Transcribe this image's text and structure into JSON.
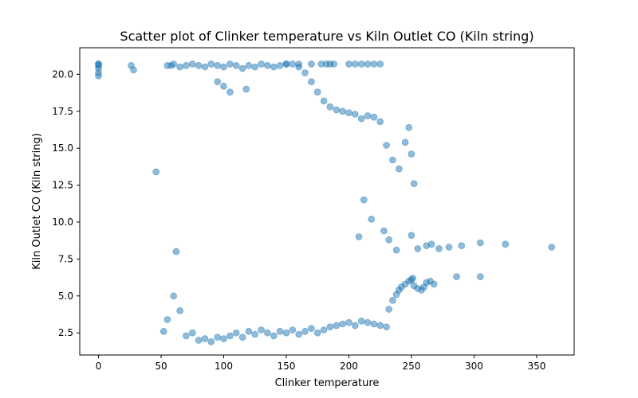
{
  "chart_data": {
    "type": "scatter",
    "title": "Scatter plot of Clinker temperature vs Kiln Outlet CO (Kiln string)",
    "xlabel": "Clinker temperature",
    "ylabel": "Kiln Outlet CO (Kiln string)",
    "xlim": [
      -15,
      380
    ],
    "ylim": [
      1.0,
      21.8
    ],
    "xticks": [
      0,
      50,
      100,
      150,
      200,
      250,
      300,
      350
    ],
    "yticks": [
      2.5,
      5.0,
      7.5,
      10.0,
      12.5,
      15.0,
      17.5,
      20.0
    ],
    "ytick_labels": [
      "2.5",
      "5.0",
      "7.5",
      "10.0",
      "12.5",
      "15.0",
      "17.5",
      "20.0"
    ],
    "grid": false,
    "marker_color": "#1f77b4",
    "marker_alpha": 0.5,
    "series": [
      {
        "x": [
          0,
          0,
          0,
          0,
          0,
          0,
          26,
          28,
          46,
          58,
          52,
          55,
          60,
          65,
          62,
          70,
          75,
          80,
          85,
          90,
          95,
          100,
          105,
          110,
          115,
          120,
          125,
          130,
          135,
          140,
          145,
          150,
          155,
          160,
          165,
          170,
          175,
          180,
          185,
          190,
          195,
          200,
          205,
          210,
          215,
          220,
          225,
          230,
          232,
          235,
          238,
          240,
          242,
          245,
          248,
          250,
          251,
          252,
          255,
          258,
          260,
          262,
          265,
          268,
          255,
          250,
          262,
          266,
          272,
          280,
          286,
          290,
          305,
          305,
          325,
          362,
          248,
          245,
          250,
          252,
          240,
          235,
          230,
          225,
          220,
          215,
          210,
          205,
          200,
          195,
          190,
          185,
          180,
          175,
          170,
          165,
          160,
          155,
          150,
          145,
          140,
          135,
          130,
          125,
          120,
          115,
          110,
          105,
          100,
          95,
          90,
          85,
          80,
          75,
          70,
          65,
          60,
          55,
          95,
          100,
          105,
          118,
          150,
          160,
          170,
          178,
          182,
          185,
          188,
          200,
          205,
          210,
          215,
          220,
          225,
          212,
          218,
          208,
          228,
          232,
          238
        ],
        "y": [
          20.7,
          20.6,
          20.4,
          20.1,
          19.9,
          20.7,
          20.6,
          20.3,
          13.4,
          20.6,
          2.6,
          3.4,
          5.0,
          4.0,
          8.0,
          2.3,
          2.5,
          2.0,
          2.1,
          1.9,
          2.2,
          2.1,
          2.3,
          2.5,
          2.2,
          2.6,
          2.4,
          2.7,
          2.5,
          2.3,
          2.6,
          2.5,
          2.7,
          2.4,
          2.6,
          2.8,
          2.5,
          2.7,
          2.9,
          3.0,
          3.1,
          3.2,
          3.0,
          3.3,
          3.2,
          3.1,
          3.0,
          2.9,
          4.1,
          4.7,
          5.1,
          5.4,
          5.6,
          5.8,
          6.0,
          6.1,
          6.2,
          5.7,
          5.5,
          5.4,
          5.6,
          5.9,
          6.0,
          5.8,
          8.2,
          9.1,
          8.4,
          8.5,
          8.2,
          8.3,
          6.3,
          8.4,
          8.6,
          6.3,
          8.5,
          8.3,
          16.4,
          15.4,
          14.6,
          12.6,
          13.6,
          14.2,
          15.2,
          16.8,
          17.1,
          17.2,
          17.0,
          17.3,
          17.4,
          17.5,
          17.6,
          17.8,
          18.2,
          18.8,
          19.5,
          20.1,
          20.5,
          20.7,
          20.7,
          20.6,
          20.5,
          20.6,
          20.7,
          20.5,
          20.6,
          20.4,
          20.6,
          20.7,
          20.5,
          20.6,
          20.7,
          20.5,
          20.6,
          20.7,
          20.6,
          20.5,
          20.7,
          20.6,
          19.5,
          19.2,
          18.8,
          19.0,
          20.7,
          20.7,
          20.7,
          20.7,
          20.7,
          20.7,
          20.7,
          20.7,
          20.7,
          20.7,
          20.7,
          20.7,
          20.7,
          11.5,
          10.2,
          9.0,
          9.4,
          8.8,
          8.1
        ]
      }
    ]
  }
}
